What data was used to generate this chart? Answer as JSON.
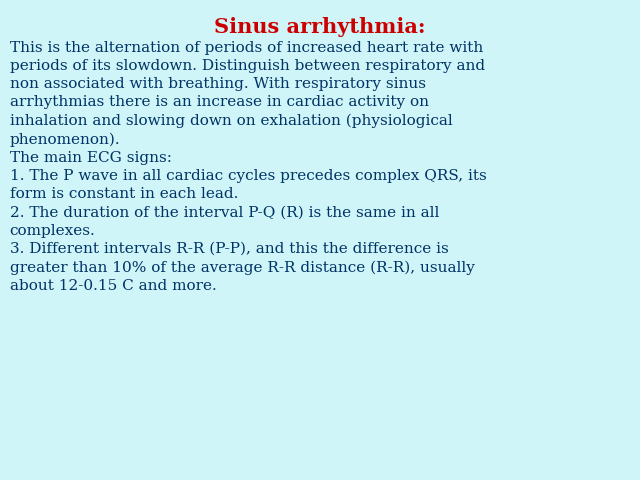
{
  "title": "Sinus arrhythmia:",
  "title_color": "#cc0000",
  "title_fontsize": 15,
  "background_color": "#d0f5f8",
  "text_color": "#003366",
  "body_fontsize": 11.0,
  "body_text": "This is the alternation of periods of increased heart rate with\nperiods of its slowdown. Distinguish between respiratory and\nnon associated with breathing. With respiratory sinus\narrhythmias there is an increase in cardiac activity on\ninhalation and slowing down on exhalation (physiological\nphenomenon).\nThe main ECG signs:\n1. The P wave in all cardiac cycles precedes complex QRS, its\nform is constant in each lead.\n2. The duration of the interval P-Q (R) is the same in all\ncomplexes.\n3. Different intervals R-R (P-P), and this the difference is\ngreater than 10% of the average R-R distance (R-R), usually\nabout 12-0.15 C and more."
}
